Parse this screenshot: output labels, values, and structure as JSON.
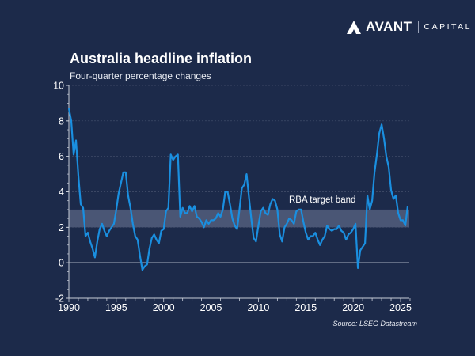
{
  "logo": {
    "brand": "AVANT",
    "sub": "CAPITAL"
  },
  "colors": {
    "background": "#1c2a4a",
    "line": "#1a8fe0",
    "band": "#4a5675",
    "grid": "#45516e"
  },
  "chart_data": {
    "type": "line",
    "title": "Australia headline inflation",
    "subtitle": "Four-quarter percentage changes",
    "source": "Source: LSEG Datastream",
    "xlabel": "",
    "ylabel": "",
    "xlim": [
      1990,
      2026
    ],
    "ylim": [
      -2,
      10
    ],
    "xticks": [
      "1990",
      "1995",
      "2000",
      "2005",
      "2010",
      "2015",
      "2020",
      "2025"
    ],
    "yticks": [
      "-2",
      "0",
      "2",
      "4",
      "6",
      "8",
      "10"
    ],
    "grid": true,
    "annotation": {
      "label": "RBA target band",
      "band": [
        2,
        3
      ]
    },
    "x": [
      1990,
      1990.25,
      1990.5,
      1990.75,
      1991,
      1991.25,
      1991.5,
      1991.75,
      1992,
      1992.25,
      1992.5,
      1992.75,
      1993,
      1993.25,
      1993.5,
      1993.75,
      1994,
      1994.25,
      1994.5,
      1994.75,
      1995,
      1995.25,
      1995.5,
      1995.75,
      1996,
      1996.25,
      1996.5,
      1996.75,
      1997,
      1997.25,
      1997.5,
      1997.75,
      1998,
      1998.25,
      1998.5,
      1998.75,
      1999,
      1999.25,
      1999.5,
      1999.75,
      2000,
      2000.25,
      2000.5,
      2000.75,
      2001,
      2001.25,
      2001.5,
      2001.75,
      2002,
      2002.25,
      2002.5,
      2002.75,
      2003,
      2003.25,
      2003.5,
      2003.75,
      2004,
      2004.25,
      2004.5,
      2004.75,
      2005,
      2005.25,
      2005.5,
      2005.75,
      2006,
      2006.25,
      2006.5,
      2006.75,
      2007,
      2007.25,
      2007.5,
      2007.75,
      2008,
      2008.25,
      2008.5,
      2008.75,
      2009,
      2009.25,
      2009.5,
      2009.75,
      2010,
      2010.25,
      2010.5,
      2010.75,
      2011,
      2011.25,
      2011.5,
      2011.75,
      2012,
      2012.25,
      2012.5,
      2012.75,
      2013,
      2013.25,
      2013.5,
      2013.75,
      2014,
      2014.25,
      2014.5,
      2014.75,
      2015,
      2015.25,
      2015.5,
      2015.75,
      2016,
      2016.25,
      2016.5,
      2016.75,
      2017,
      2017.25,
      2017.5,
      2017.75,
      2018,
      2018.25,
      2018.5,
      2018.75,
      2019,
      2019.25,
      2019.5,
      2019.75,
      2020,
      2020.25,
      2020.5,
      2020.75,
      2021,
      2021.25,
      2021.5,
      2021.75,
      2022,
      2022.25,
      2022.5,
      2022.75,
      2023,
      2023.25,
      2023.5,
      2023.75,
      2024,
      2024.25,
      2024.5,
      2024.75,
      2025,
      2025.25,
      2025.5,
      2025.75
    ],
    "values": [
      8.7,
      8.0,
      6.1,
      6.9,
      4.9,
      3.3,
      3.1,
      1.5,
      1.7,
      1.2,
      0.8,
      0.3,
      1.2,
      1.9,
      2.2,
      1.8,
      1.5,
      1.8,
      2.0,
      2.2,
      3.0,
      3.9,
      4.5,
      5.1,
      5.1,
      3.8,
      3.1,
      2.2,
      1.5,
      1.3,
      0.4,
      -0.4,
      -0.2,
      -0.1,
      0.8,
      1.4,
      1.6,
      1.3,
      1.1,
      1.8,
      1.9,
      2.9,
      3.1,
      6.1,
      5.8,
      6.0,
      6.1,
      2.6,
      3.1,
      2.8,
      2.8,
      3.2,
      2.9,
      3.2,
      2.6,
      2.5,
      2.3,
      2.0,
      2.4,
      2.2,
      2.4,
      2.4,
      2.5,
      2.8,
      2.6,
      3.0,
      4.0,
      4.0,
      3.3,
      2.5,
      2.1,
      1.9,
      3.0,
      4.2,
      4.4,
      5.0,
      3.7,
      2.5,
      1.4,
      1.2,
      2.1,
      2.9,
      3.1,
      2.8,
      2.7,
      3.3,
      3.6,
      3.5,
      3.0,
      1.6,
      1.2,
      2.0,
      2.2,
      2.5,
      2.4,
      2.2,
      2.9,
      3.0,
      3.0,
      2.3,
      1.7,
      1.3,
      1.5,
      1.5,
      1.7,
      1.3,
      1.0,
      1.3,
      1.5,
      2.1,
      1.9,
      1.8,
      1.9,
      1.9,
      2.1,
      1.8,
      1.7,
      1.3,
      1.6,
      1.7,
      1.9,
      2.2,
      -0.3,
      0.7,
      0.9,
      1.1,
      3.8,
      3.0,
      3.5,
      5.1,
      6.1,
      7.3,
      7.8,
      7.0,
      6.0,
      5.4,
      4.1,
      3.6,
      3.8,
      2.8,
      2.4,
      2.4,
      2.1,
      3.2
    ]
  }
}
